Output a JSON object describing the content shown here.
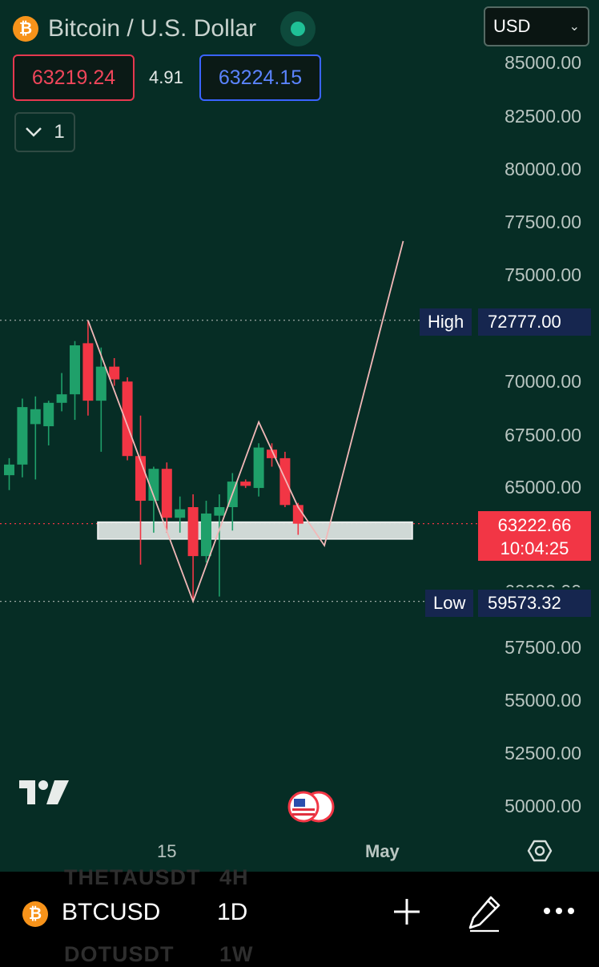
{
  "header": {
    "title": "Bitcoin / U.S. Dollar",
    "coin_glyph": "₿",
    "currency": "USD",
    "bid": "63219.24",
    "spread": "4.91",
    "ask": "63224.15",
    "indicator_count": "1"
  },
  "colors": {
    "background": "#062d25",
    "up": "#1fa06a",
    "down": "#f23645",
    "accent_blue": "#3a63ff",
    "brand_orange": "#f7931a"
  },
  "price_scale": {
    "ticks": [
      "85000.00",
      "82500.00",
      "80000.00",
      "77500.00",
      "75000.00",
      "70000.00",
      "67500.00",
      "65000.00",
      "57500.00",
      "55000.00",
      "52500.00",
      "50000.00"
    ],
    "hidden_tick": "60000.00"
  },
  "markers": {
    "high_label": "High",
    "high_value": "72777.00",
    "low_label": "Low",
    "low_value": "59573.32",
    "current_price": "63222.66",
    "countdown": "10:04:25"
  },
  "time_axis": {
    "labels": [
      "15",
      "May"
    ]
  },
  "bottom_bar": {
    "symbol": "BTCUSD",
    "interval": "1D",
    "ghost_rows": [
      {
        "symbol": "THETAUSDT",
        "interval": "4H"
      },
      {
        "symbol": "DOTUSDT",
        "interval": "1W"
      }
    ]
  },
  "chart_data": {
    "type": "candlestick",
    "ylim": [
      48800,
      86000
    ],
    "candles": [
      {
        "o": 65500,
        "h": 66300,
        "l": 64800,
        "c": 66000
      },
      {
        "o": 66000,
        "h": 69100,
        "l": 65400,
        "c": 68700
      },
      {
        "o": 67900,
        "h": 69200,
        "l": 65300,
        "c": 68600
      },
      {
        "o": 67800,
        "h": 69000,
        "l": 66900,
        "c": 68900
      },
      {
        "o": 68900,
        "h": 70300,
        "l": 68500,
        "c": 69300
      },
      {
        "o": 69300,
        "h": 71800,
        "l": 68100,
        "c": 71600
      },
      {
        "o": 71700,
        "h": 72777,
        "l": 68300,
        "c": 69000
      },
      {
        "o": 69000,
        "h": 71500,
        "l": 66600,
        "c": 70600
      },
      {
        "o": 70600,
        "h": 71000,
        "l": 69700,
        "c": 70000
      },
      {
        "o": 69900,
        "h": 70100,
        "l": 66200,
        "c": 66400
      },
      {
        "o": 66400,
        "h": 68300,
        "l": 61300,
        "c": 64300
      },
      {
        "o": 64300,
        "h": 65900,
        "l": 62800,
        "c": 65800
      },
      {
        "o": 65800,
        "h": 66100,
        "l": 62800,
        "c": 63500
      },
      {
        "o": 63500,
        "h": 64500,
        "l": 62800,
        "c": 63900
      },
      {
        "o": 64000,
        "h": 64600,
        "l": 59573,
        "c": 61700
      },
      {
        "o": 61700,
        "h": 64300,
        "l": 61400,
        "c": 63700
      },
      {
        "o": 63600,
        "h": 64600,
        "l": 59800,
        "c": 64000
      },
      {
        "o": 64000,
        "h": 65600,
        "l": 62900,
        "c": 65200
      },
      {
        "o": 65200,
        "h": 65300,
        "l": 64900,
        "c": 65000
      },
      {
        "o": 64900,
        "h": 67000,
        "l": 64500,
        "c": 66800
      },
      {
        "o": 66700,
        "h": 67000,
        "l": 65900,
        "c": 66300
      },
      {
        "o": 66300,
        "h": 66600,
        "l": 64000,
        "c": 64100
      },
      {
        "o": 64100,
        "h": 64200,
        "l": 62700,
        "c": 63222.66
      }
    ],
    "support_zone": [
      62500,
      63300
    ],
    "projection_path": [
      [
        6,
        72777
      ],
      [
        14,
        59573
      ],
      [
        19,
        68000
      ],
      [
        22,
        64000
      ],
      [
        24,
        62200
      ],
      [
        30,
        76500
      ]
    ],
    "high": 72777.0,
    "low": 59573.32,
    "last": 63222.66
  }
}
